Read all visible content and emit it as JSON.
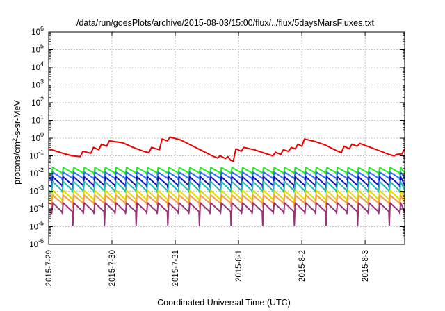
{
  "chart_data": {
    "type": "line",
    "title": "/data/run/goesPlots/archive/2015-08-03/15:00/flux/../flux/5daysMarsFluxes.txt",
    "xlabel": "Coordinated Universal Time (UTC)",
    "ylabel": "protons/cm²-s-sr-MeV",
    "y_scale": "log",
    "ylim": [
      1e-06,
      1000000.0
    ],
    "y_ticks": [
      {
        "exp": -6,
        "value": 1e-06,
        "base": "10",
        "sup": "-6"
      },
      {
        "exp": -5,
        "value": 1e-05,
        "base": "10",
        "sup": "-5"
      },
      {
        "exp": -4,
        "value": 0.0001,
        "base": "10",
        "sup": "-4"
      },
      {
        "exp": -3,
        "value": 0.001,
        "base": "10",
        "sup": "-3"
      },
      {
        "exp": -2,
        "value": 0.01,
        "base": "10",
        "sup": "-2"
      },
      {
        "exp": -1,
        "value": 0.1,
        "base": "10",
        "sup": "-1"
      },
      {
        "exp": 0,
        "value": 1,
        "base": "10",
        "sup": "0"
      },
      {
        "exp": 1,
        "value": 10,
        "base": "10",
        "sup": "1"
      },
      {
        "exp": 2,
        "value": 100,
        "base": "10",
        "sup": "2"
      },
      {
        "exp": 3,
        "value": 1000,
        "base": "10",
        "sup": "3"
      },
      {
        "exp": 4,
        "value": 10000,
        "base": "10",
        "sup": "4"
      },
      {
        "exp": 5,
        "value": 100000,
        "base": "10",
        "sup": "5"
      },
      {
        "exp": 6,
        "value": 1000000,
        "base": "10",
        "sup": "6"
      }
    ],
    "xlim": [
      "2015-07-29 00:00",
      "2015-08-03 15:00"
    ],
    "x_ticks": [
      "2015-7-29",
      "2015-7-30",
      "2015-7-31",
      "2015-8-1",
      "2015-8-2",
      "2015-8-3"
    ],
    "grid": true,
    "legend": "none",
    "series": [
      {
        "color": "#ee0000",
        "values": [
          [
            "2015-07-29 00:00",
            0.25
          ],
          [
            "2015-07-29 03:00",
            0.18
          ],
          [
            "2015-07-29 06:00",
            0.13
          ],
          [
            "2015-07-29 09:00",
            0.1
          ],
          [
            "2015-07-29 12:00",
            0.09
          ],
          [
            "2015-07-29 13:00",
            0.18
          ],
          [
            "2015-07-29 16:00",
            0.14
          ],
          [
            "2015-07-29 17:00",
            0.3
          ],
          [
            "2015-07-29 19:00",
            0.22
          ],
          [
            "2015-07-29 20:00",
            0.45
          ],
          [
            "2015-07-29 22:00",
            0.35
          ],
          [
            "2015-07-29 23:00",
            0.7
          ],
          [
            "2015-07-30 04:00",
            0.55
          ],
          [
            "2015-07-30 08:00",
            0.3
          ],
          [
            "2015-07-30 12:00",
            0.18
          ],
          [
            "2015-07-30 14:00",
            0.15
          ],
          [
            "2015-07-30 15:00",
            0.3
          ],
          [
            "2015-07-30 18:00",
            0.22
          ],
          [
            "2015-07-30 19:00",
            0.9
          ],
          [
            "2015-07-30 21:00",
            0.7
          ],
          [
            "2015-07-30 22:00",
            1.15
          ],
          [
            "2015-07-31 02:00",
            0.8
          ],
          [
            "2015-07-31 06:00",
            0.4
          ],
          [
            "2015-07-31 10:00",
            0.2
          ],
          [
            "2015-07-31 14:00",
            0.1
          ],
          [
            "2015-07-31 16:00",
            0.075
          ],
          [
            "2015-07-31 17:00",
            0.1
          ],
          [
            "2015-07-31 19:00",
            0.07
          ],
          [
            "2015-07-31 20:00",
            0.09
          ],
          [
            "2015-07-31 21:00",
            0.055
          ],
          [
            "2015-07-31 22:00",
            0.05
          ],
          [
            "2015-07-31 23:00",
            0.25
          ],
          [
            "2015-08-01 01:00",
            0.18
          ],
          [
            "2015-08-01 02:00",
            0.3
          ],
          [
            "2015-08-01 06:00",
            0.22
          ],
          [
            "2015-08-01 10:00",
            0.14
          ],
          [
            "2015-08-01 13:00",
            0.1
          ],
          [
            "2015-08-01 14:00",
            0.16
          ],
          [
            "2015-08-01 16:00",
            0.12
          ],
          [
            "2015-08-01 17:00",
            0.22
          ],
          [
            "2015-08-01 19:00",
            0.18
          ],
          [
            "2015-08-01 20:00",
            0.3
          ],
          [
            "2015-08-01 21:30",
            0.25
          ],
          [
            "2015-08-01 22:30",
            0.45
          ],
          [
            "2015-08-02 00:00",
            0.35
          ],
          [
            "2015-08-02 01:00",
            0.9
          ],
          [
            "2015-08-02 05:00",
            0.65
          ],
          [
            "2015-08-02 09:00",
            0.4
          ],
          [
            "2015-08-02 13:00",
            0.2
          ],
          [
            "2015-08-02 15:00",
            0.15
          ],
          [
            "2015-08-02 16:00",
            0.35
          ],
          [
            "2015-08-02 18:00",
            0.25
          ],
          [
            "2015-08-02 19:00",
            0.45
          ],
          [
            "2015-08-02 21:00",
            0.35
          ],
          [
            "2015-08-02 22:00",
            0.5
          ],
          [
            "2015-08-03 02:00",
            0.3
          ],
          [
            "2015-08-03 06:00",
            0.18
          ],
          [
            "2015-08-03 09:00",
            0.12
          ],
          [
            "2015-08-03 11:00",
            0.1
          ],
          [
            "2015-08-03 12:00",
            0.12
          ],
          [
            "2015-08-03 14:00",
            0.13
          ],
          [
            "2015-08-03 15:00",
            0.25
          ]
        ]
      },
      {
        "color": "#22ee22",
        "pattern": {
          "base": 0.011,
          "peak": 0.022,
          "min": 0.011
        }
      },
      {
        "color": "#3070ff",
        "pattern": {
          "base": 0.0055,
          "peak": 0.012,
          "min": 0.005
        }
      },
      {
        "color": "#1111bb",
        "pattern": {
          "base": 0.0022,
          "peak": 0.0065,
          "min": 0.0015
        }
      },
      {
        "color": "#22bbaa",
        "pattern": {
          "base": 0.0011,
          "peak": 0.0035,
          "min": 0.0009
        }
      },
      {
        "color": "#dddd00",
        "pattern": {
          "base": 0.00035,
          "peak": 0.0011,
          "min": 0.0002
        }
      },
      {
        "color": "#ff9944",
        "pattern": {
          "base": 0.00022,
          "peak": 0.0006,
          "min": 0.00013
        }
      },
      {
        "color": "#993377",
        "pattern": {
          "base": 7e-05,
          "peak": 0.00022,
          "min": 1.2e-05
        }
      }
    ]
  }
}
